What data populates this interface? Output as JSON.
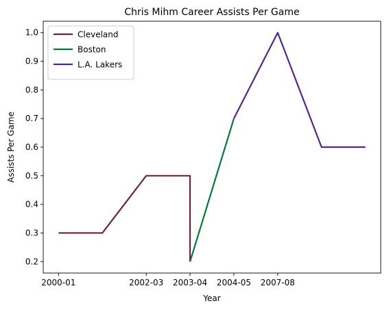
{
  "chart_data": {
    "type": "line",
    "title": "Chris Mihm Career Assists Per Game",
    "xlabel": "Year",
    "ylabel": "Assists Per Game",
    "x_ticks": [
      {
        "pos": 0,
        "label": "2000-01"
      },
      {
        "pos": 2,
        "label": "2002-03"
      },
      {
        "pos": 3,
        "label": "2003-04"
      },
      {
        "pos": 4,
        "label": "2004-05"
      },
      {
        "pos": 5,
        "label": "2007-08"
      }
    ],
    "ylim": [
      0.16,
      1.04
    ],
    "xlim": [
      -0.35,
      7.35
    ],
    "y_ticks": [
      0.2,
      0.3,
      0.4,
      0.5,
      0.6,
      0.7,
      0.8,
      0.9,
      1.0
    ],
    "y_tick_labels": [
      "0.2",
      "0.3",
      "0.4",
      "0.5",
      "0.6",
      "0.7",
      "0.8",
      "0.9",
      "1.0"
    ],
    "grid": false,
    "legend_position": "upper-left",
    "series": [
      {
        "name": "Cleveland",
        "color": "#6b2336",
        "points": [
          [
            0,
            0.3
          ],
          [
            1,
            0.3
          ],
          [
            2,
            0.5
          ],
          [
            3,
            0.5
          ],
          [
            3,
            0.2
          ]
        ]
      },
      {
        "name": "Boston",
        "color": "#007a33",
        "points": [
          [
            3,
            0.2
          ],
          [
            4,
            0.7
          ]
        ]
      },
      {
        "name": "L.A. Lakers",
        "color": "#552583",
        "points": [
          [
            4,
            0.7
          ],
          [
            5,
            1.0
          ],
          [
            6,
            0.6
          ],
          [
            7,
            0.6
          ]
        ]
      }
    ]
  }
}
